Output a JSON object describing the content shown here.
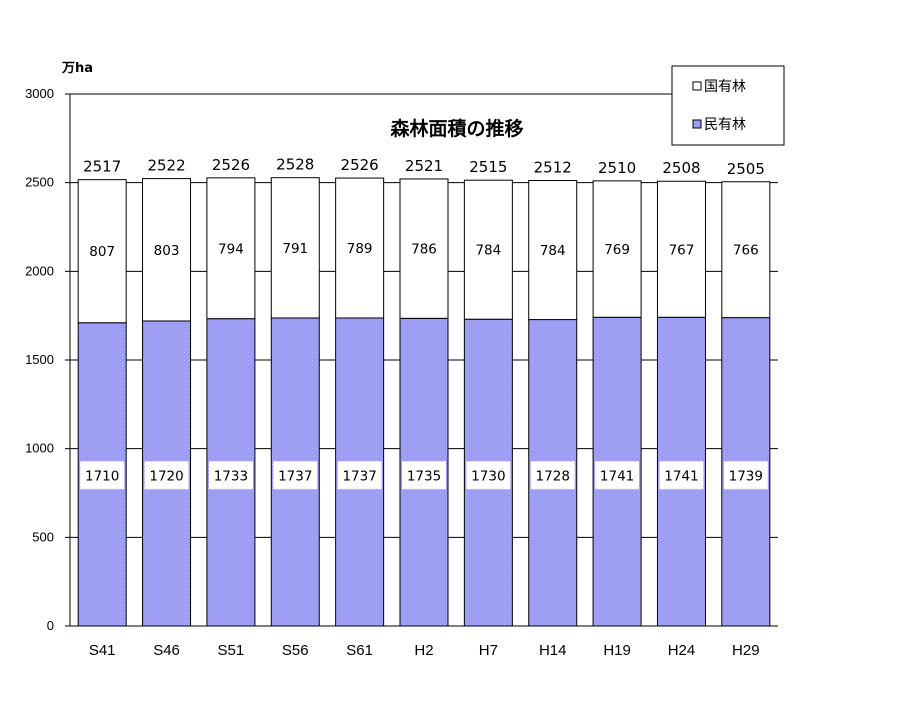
{
  "chart_data": {
    "type": "bar",
    "stacked": true,
    "title": "森林面積の推移",
    "ylabel": "万ha",
    "ylim": [
      0,
      3000
    ],
    "yticks": [
      0,
      500,
      1000,
      1500,
      2000,
      2500,
      3000
    ],
    "categories": [
      "S41",
      "S46",
      "S51",
      "S56",
      "S61",
      "H2",
      "H7",
      "H14",
      "H19",
      "H24",
      "H29"
    ],
    "series": [
      {
        "name": "民有林",
        "values": [
          1710,
          1720,
          1733,
          1737,
          1737,
          1735,
          1730,
          1728,
          1741,
          1741,
          1739
        ],
        "color": "#9999ff"
      },
      {
        "name": "国有林",
        "values": [
          807,
          803,
          794,
          791,
          789,
          786,
          784,
          784,
          769,
          767,
          766
        ],
        "color": "#ffffff"
      }
    ],
    "totals": [
      2517,
      2522,
      2526,
      2528,
      2526,
      2521,
      2515,
      2512,
      2510,
      2508,
      2505
    ],
    "legend": "top-right",
    "grid": true
  }
}
